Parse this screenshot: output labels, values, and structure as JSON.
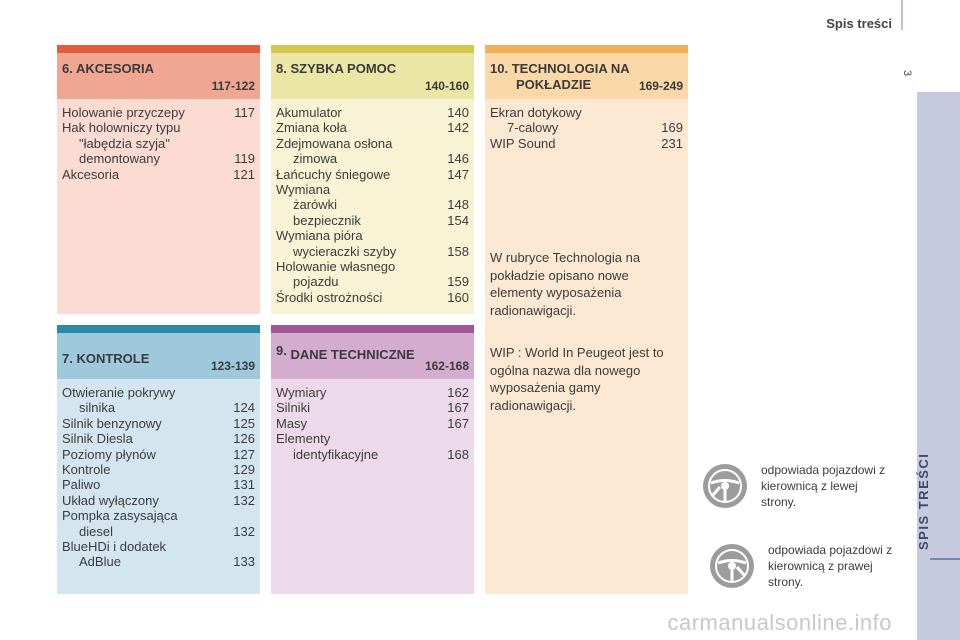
{
  "header": {
    "title": "Spis treści",
    "page_number": "3",
    "side_tab": "SPIS TREŚCI"
  },
  "sections": {
    "s6": {
      "number": "6.",
      "title": "AKCESORIA",
      "range": "117-122",
      "entries": [
        {
          "lines": [
            "Holowanie przyczepy"
          ],
          "page": "117"
        },
        {
          "lines": [
            "Hak holowniczy typu",
            "\"łabędzia szyja\"",
            "demontowany"
          ],
          "page": "119"
        },
        {
          "lines": [
            "Akcesoria"
          ],
          "page": "121"
        }
      ]
    },
    "s8": {
      "number": "8.",
      "title": "SZYBKA POMOC",
      "range": "140-160",
      "entries": [
        {
          "lines": [
            "Akumulator"
          ],
          "page": "140"
        },
        {
          "lines": [
            "Zmiana koła"
          ],
          "page": "142"
        },
        {
          "lines": [
            "Zdejmowana osłona",
            "zimowa"
          ],
          "page": "146"
        },
        {
          "lines": [
            "Łańcuchy śniegowe"
          ],
          "page": "147"
        },
        {
          "lines": [
            "Wymiana",
            "żarówki"
          ],
          "page": "148"
        },
        {
          "lines": [
            "",
            "bezpiecznik"
          ],
          "page": "154"
        },
        {
          "lines": [
            "Wymiana pióra",
            "wycieraczki szyby"
          ],
          "page": "158"
        },
        {
          "lines": [
            "Holowanie własnego",
            "pojazdu"
          ],
          "page": "159"
        },
        {
          "lines": [
            "Środki ostrożności"
          ],
          "page": "160"
        }
      ]
    },
    "s10": {
      "number": "10.",
      "title_line1": "TECHNOLOGIA NA",
      "title_line2": "POKŁADZIE",
      "range": "169-249",
      "entries": [
        {
          "lines": [
            "Ekran dotykowy",
            "7-calowy"
          ],
          "page": "169"
        },
        {
          "lines": [
            "WIP Sound"
          ],
          "page": "231"
        }
      ],
      "note1": "W rubryce Technologia na pokładzie opisano nowe elementy wyposażenia radionawigacji.",
      "note2": "WIP : World In Peugeot jest to ogólna nazwa dla nowego wyposażenia gamy radionawigacji."
    },
    "s7": {
      "number": "7.",
      "title": "KONTROLE",
      "range": "123-139",
      "entries": [
        {
          "lines": [
            "Otwieranie pokrywy",
            "silnika"
          ],
          "page": "124"
        },
        {
          "lines": [
            "Silnik benzynowy"
          ],
          "page": "125"
        },
        {
          "lines": [
            "Silnik Diesla"
          ],
          "page": "126"
        },
        {
          "lines": [
            "Poziomy płynów"
          ],
          "page": "127"
        },
        {
          "lines": [
            "Kontrole"
          ],
          "page": "129"
        },
        {
          "lines": [
            "Paliwo"
          ],
          "page": "131"
        },
        {
          "lines": [
            "Układ wyłączony"
          ],
          "page": "132"
        },
        {
          "lines": [
            "Pompka zasysająca",
            "diesel"
          ],
          "page": "132"
        },
        {
          "lines": [
            "BlueHDi i dodatek",
            "AdBlue"
          ],
          "page": "133"
        }
      ]
    },
    "s9": {
      "number": "9.",
      "title": "DANE TECHNICZNE",
      "range": "162-168",
      "entries": [
        {
          "lines": [
            "Wymiary"
          ],
          "page": "162"
        },
        {
          "lines": [
            "Silniki"
          ],
          "page": "167"
        },
        {
          "lines": [
            "Masy"
          ],
          "page": "167"
        },
        {
          "lines": [
            "Elementy",
            "identyfikacyjne"
          ],
          "page": "168"
        }
      ]
    }
  },
  "legend": {
    "left_hand": {
      "icon": "steering-wheel-left-icon",
      "text": "odpowiada pojazdowi z kierownicą z lewej strony."
    },
    "right_hand": {
      "icon": "steering-wheel-right-icon",
      "text": "odpowiada pojazdowi z kierownicą z prawej strony."
    }
  },
  "watermark": "carmanualsonline.info"
}
